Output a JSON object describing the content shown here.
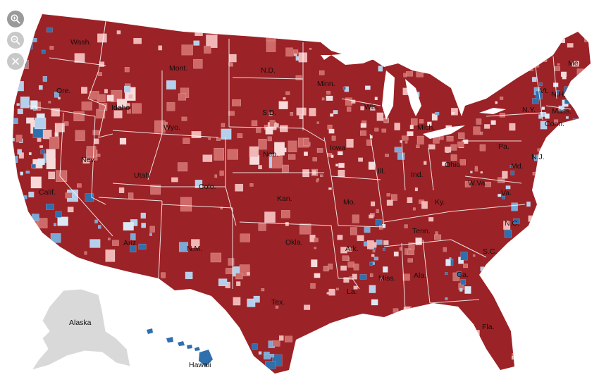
{
  "controls": {
    "zoom_in_icon": "zoom-in-icon",
    "zoom_out_icon": "zoom-out-icon",
    "reset_icon": "close-icon"
  },
  "colors": {
    "rep_strong": "#9b2226",
    "rep_medium": "#cf6a68",
    "rep_light": "#f1b7b7",
    "rep_faint": "#f8dada",
    "dem_strong": "#2e6fae",
    "dem_medium": "#7aa9d8",
    "dem_light": "#b5d0ec",
    "dem_faint": "#dbe8f6",
    "no_data": "#d9d9d9",
    "border": "#ffffff"
  },
  "states": [
    {
      "id": "wa",
      "label": "Wash."
    },
    {
      "id": "or",
      "label": "Ore."
    },
    {
      "id": "ca",
      "label": "Calif."
    },
    {
      "id": "nv",
      "label": "Nev."
    },
    {
      "id": "id",
      "label": "Idaho"
    },
    {
      "id": "mt",
      "label": "Mont."
    },
    {
      "id": "wy",
      "label": "Wyo."
    },
    {
      "id": "ut",
      "label": "Utah"
    },
    {
      "id": "az",
      "label": "Ariz."
    },
    {
      "id": "co",
      "label": "Colo."
    },
    {
      "id": "nm",
      "label": "N.M."
    },
    {
      "id": "nd",
      "label": "N.D."
    },
    {
      "id": "sd",
      "label": "S.D."
    },
    {
      "id": "ne",
      "label": "Neb."
    },
    {
      "id": "ks",
      "label": "Kan."
    },
    {
      "id": "ok",
      "label": "Okla."
    },
    {
      "id": "tx",
      "label": "Tex."
    },
    {
      "id": "mn",
      "label": "Minn."
    },
    {
      "id": "ia",
      "label": "Iowa"
    },
    {
      "id": "mo",
      "label": "Mo."
    },
    {
      "id": "ar",
      "label": "Ark."
    },
    {
      "id": "la",
      "label": "La."
    },
    {
      "id": "wi",
      "label": "Wis."
    },
    {
      "id": "il",
      "label": "Ill."
    },
    {
      "id": "mi",
      "label": "Mich."
    },
    {
      "id": "in",
      "label": "Ind."
    },
    {
      "id": "oh",
      "label": "Ohio"
    },
    {
      "id": "ky",
      "label": "Ky."
    },
    {
      "id": "tn",
      "label": "Tenn."
    },
    {
      "id": "ms",
      "label": "Miss."
    },
    {
      "id": "al",
      "label": "Ala."
    },
    {
      "id": "ga",
      "label": "Ga."
    },
    {
      "id": "fl",
      "label": "Fla."
    },
    {
      "id": "sc",
      "label": "S.C."
    },
    {
      "id": "nc",
      "label": "N.C."
    },
    {
      "id": "va",
      "label": "Va."
    },
    {
      "id": "wv",
      "label": "W.Va."
    },
    {
      "id": "pa",
      "label": "Pa."
    },
    {
      "id": "ny",
      "label": "N.Y."
    },
    {
      "id": "vt",
      "label": "Vt."
    },
    {
      "id": "nh",
      "label": "N.H."
    },
    {
      "id": "me",
      "label": "Me."
    },
    {
      "id": "ma",
      "label": "Mass."
    },
    {
      "id": "ct",
      "label": "Conn."
    },
    {
      "id": "nj",
      "label": "N.J."
    },
    {
      "id": "md",
      "label": "Md."
    },
    {
      "id": "ak",
      "label": "Alaska"
    },
    {
      "id": "hi",
      "label": "Hawaii"
    }
  ]
}
